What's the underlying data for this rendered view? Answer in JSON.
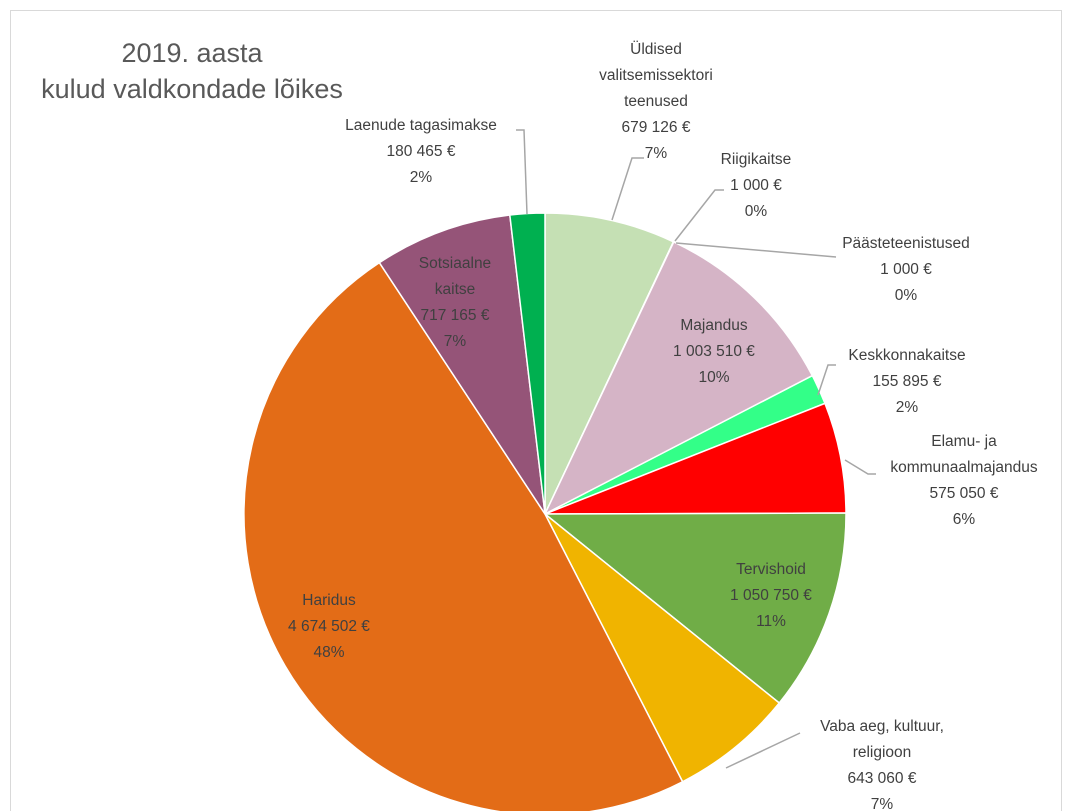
{
  "chart_data": {
    "type": "pie",
    "title_lines": [
      "2019. aasta",
      "kulud valdkondade lõikes"
    ],
    "slices": [
      {
        "name": "Üldised valitsemissektori teenused",
        "name_lines": [
          "Üldised",
          "valitsemissektori",
          "teenused"
        ],
        "value": 679126,
        "value_label": "679 126 €",
        "percent_label": "7%",
        "color": "#c5e0b4"
      },
      {
        "name": "Riigikaitse",
        "name_lines": [
          "Riigikaitse"
        ],
        "value": 1000,
        "value_label": "1 000 €",
        "percent_label": "0%",
        "color": "#a5a5a5"
      },
      {
        "name": "Päästeteenistused",
        "name_lines": [
          "Päästeteenistused"
        ],
        "value": 1000,
        "value_label": "1 000 €",
        "percent_label": "0%",
        "color": "#5b9bd5"
      },
      {
        "name": "Majandus",
        "name_lines": [
          "Majandus"
        ],
        "value": 1003510,
        "value_label": "1 003 510 €",
        "percent_label": "10%",
        "color": "#d5b4c6"
      },
      {
        "name": "Keskkonnakaitse",
        "name_lines": [
          "Keskkonnakaitse"
        ],
        "value": 155895,
        "value_label": "155 895 €",
        "percent_label": "2%",
        "color": "#33ff88"
      },
      {
        "name": "Elamu- ja kommunaalmajandus",
        "name_lines": [
          "Elamu- ja",
          "kommunaalmajandus"
        ],
        "value": 575050,
        "value_label": "575 050 €",
        "percent_label": "6%",
        "color": "#ff0000"
      },
      {
        "name": "Tervishoid",
        "name_lines": [
          "Tervishoid"
        ],
        "value": 1050750,
        "value_label": "1 050 750 €",
        "percent_label": "11%",
        "color": "#70ad47"
      },
      {
        "name": "Vaba aeg, kultuur, religioon",
        "name_lines": [
          "Vaba aeg, kultuur,",
          "religioon"
        ],
        "value": 643060,
        "value_label": "643 060 €",
        "percent_label": "7%",
        "color": "#f0b400"
      },
      {
        "name": "Haridus",
        "name_lines": [
          "Haridus"
        ],
        "value": 4674502,
        "value_label": "4 674 502 €",
        "percent_label": "48%",
        "color": "#e36c17"
      },
      {
        "name": "Sotsiaalne kaitse",
        "name_lines": [
          "Sotsiaalne",
          "kaitse"
        ],
        "value": 717165,
        "value_label": "717 165 €",
        "percent_label": "7%",
        "color": "#955478"
      },
      {
        "name": "Laenude tagasimakse",
        "name_lines": [
          "Laenude tagasimakse"
        ],
        "value": 180465,
        "value_label": "180 465 €",
        "percent_label": "2%",
        "color": "#00b050"
      }
    ]
  }
}
